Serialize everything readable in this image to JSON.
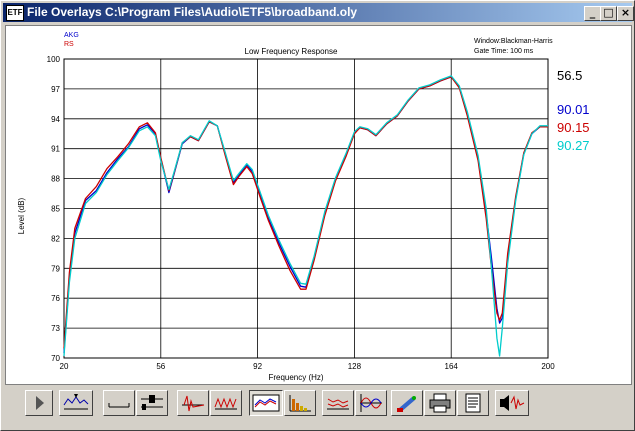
{
  "window": {
    "icon_label": "ETF",
    "title": "File Overlays  C:\\Program Files\\Audio\\ETF5\\broadband.oly",
    "buttons": {
      "minimize": "_",
      "maximize": "□",
      "close": "×"
    }
  },
  "plot": {
    "legend": [
      "AKG",
      "RS"
    ],
    "window_info": "Window:Blackman-Harris",
    "gate_info": "Gate Time: 100 ms",
    "readouts": [
      "56.5",
      "90.01",
      "90.15",
      "90.27"
    ],
    "readout_colors": [
      "#000000",
      "#0000cc",
      "#cc0000",
      "#00cccc"
    ],
    "grid": true
  },
  "chart_data": {
    "type": "line",
    "title": "Low Frequency Response",
    "xlabel": "Frequency (Hz)",
    "ylabel": "Level (dB)",
    "xlim": [
      20,
      200
    ],
    "ylim": [
      70,
      100
    ],
    "x_ticks": [
      "20",
      "56",
      "92",
      "128",
      "164",
      "200"
    ],
    "y_ticks": [
      "100",
      "97",
      "94",
      "91",
      "88",
      "85",
      "82",
      "79",
      "76",
      "73",
      "70"
    ],
    "series": [
      {
        "name": "AKG",
        "color": "#0000cc",
        "points": [
          [
            20,
            70.5
          ],
          [
            22,
            78
          ],
          [
            24,
            82.5
          ],
          [
            28,
            85.8
          ],
          [
            32,
            86.8
          ],
          [
            36,
            88.6
          ],
          [
            40,
            90
          ],
          [
            44,
            91.2
          ],
          [
            48,
            93
          ],
          [
            51,
            93.4
          ],
          [
            54,
            92.5
          ],
          [
            56,
            90
          ],
          [
            59,
            86.6
          ],
          [
            61,
            88.5
          ],
          [
            64,
            91.5
          ],
          [
            67,
            92.2
          ],
          [
            70,
            91.8
          ],
          [
            74,
            93.7
          ],
          [
            77,
            93.3
          ],
          [
            80,
            90.5
          ],
          [
            83,
            87.6
          ],
          [
            85,
            88.3
          ],
          [
            88,
            89.4
          ],
          [
            90,
            88.7
          ],
          [
            93,
            86.3
          ],
          [
            96,
            84
          ],
          [
            100,
            81.5
          ],
          [
            104,
            79.2
          ],
          [
            108,
            77.2
          ],
          [
            110,
            77.1
          ],
          [
            113,
            80
          ],
          [
            117,
            84.5
          ],
          [
            121,
            88
          ],
          [
            125,
            90.5
          ],
          [
            128,
            92.6
          ],
          [
            130,
            93.1
          ],
          [
            133,
            92.9
          ],
          [
            136,
            92.3
          ],
          [
            140,
            93.5
          ],
          [
            144,
            94.3
          ],
          [
            148,
            95.8
          ],
          [
            152,
            97
          ],
          [
            156,
            97.3
          ],
          [
            160,
            97.8
          ],
          [
            164,
            98.2
          ],
          [
            167,
            97.2
          ],
          [
            170,
            94.5
          ],
          [
            174,
            90
          ],
          [
            177,
            84.5
          ],
          [
            179,
            80
          ],
          [
            181,
            75
          ],
          [
            182,
            73.5
          ],
          [
            183,
            74
          ],
          [
            185,
            80
          ],
          [
            188,
            86
          ],
          [
            191,
            90.5
          ],
          [
            194,
            92.5
          ],
          [
            197,
            93.2
          ],
          [
            200,
            93.2
          ]
        ]
      },
      {
        "name": "RS",
        "color": "#cc0000",
        "points": [
          [
            20,
            71
          ],
          [
            22,
            78.6
          ],
          [
            24,
            83
          ],
          [
            28,
            86
          ],
          [
            32,
            87.2
          ],
          [
            36,
            89
          ],
          [
            40,
            90.2
          ],
          [
            44,
            91.5
          ],
          [
            48,
            93.2
          ],
          [
            51,
            93.6
          ],
          [
            54,
            92.6
          ],
          [
            56,
            90.1
          ],
          [
            59,
            86.8
          ],
          [
            61,
            88.6
          ],
          [
            64,
            91.6
          ],
          [
            67,
            92.2
          ],
          [
            70,
            91.8
          ],
          [
            74,
            93.7
          ],
          [
            77,
            93.3
          ],
          [
            80,
            90.3
          ],
          [
            83,
            87.4
          ],
          [
            85,
            88.2
          ],
          [
            88,
            89.2
          ],
          [
            90,
            88.5
          ],
          [
            93,
            86.1
          ],
          [
            96,
            83.8
          ],
          [
            100,
            81.2
          ],
          [
            104,
            78.8
          ],
          [
            108,
            76.9
          ],
          [
            110,
            76.9
          ],
          [
            113,
            79.8
          ],
          [
            117,
            84.3
          ],
          [
            121,
            87.8
          ],
          [
            125,
            90.3
          ],
          [
            128,
            92.5
          ],
          [
            130,
            93.1
          ],
          [
            133,
            92.9
          ],
          [
            136,
            92.3
          ],
          [
            140,
            93.5
          ],
          [
            144,
            94.3
          ],
          [
            148,
            95.8
          ],
          [
            152,
            97
          ],
          [
            156,
            97.3
          ],
          [
            160,
            97.8
          ],
          [
            164,
            98.2
          ],
          [
            167,
            97.1
          ],
          [
            170,
            94.3
          ],
          [
            174,
            89.8
          ],
          [
            177,
            84
          ],
          [
            179,
            79
          ],
          [
            181,
            74.5
          ],
          [
            182,
            73.8
          ],
          [
            183,
            74.5
          ],
          [
            185,
            80.5
          ],
          [
            188,
            86.2
          ],
          [
            191,
            90.6
          ],
          [
            194,
            92.6
          ],
          [
            197,
            93.2
          ],
          [
            200,
            93.2
          ]
        ]
      },
      {
        "name": "",
        "color": "#00cccc",
        "points": [
          [
            20,
            70.2
          ],
          [
            22,
            77.6
          ],
          [
            24,
            82
          ],
          [
            28,
            85.5
          ],
          [
            32,
            86.6
          ],
          [
            36,
            88.4
          ],
          [
            40,
            89.8
          ],
          [
            44,
            91.1
          ],
          [
            48,
            92.8
          ],
          [
            51,
            93.2
          ],
          [
            54,
            92.3
          ],
          [
            56,
            89.8
          ],
          [
            59,
            86.9
          ],
          [
            61,
            88.7
          ],
          [
            64,
            91.6
          ],
          [
            67,
            92.3
          ],
          [
            70,
            91.9
          ],
          [
            74,
            93.8
          ],
          [
            77,
            93.3
          ],
          [
            80,
            90.6
          ],
          [
            83,
            87.8
          ],
          [
            85,
            88.5
          ],
          [
            88,
            89.5
          ],
          [
            90,
            88.9
          ],
          [
            93,
            86.6
          ],
          [
            96,
            84.3
          ],
          [
            100,
            81.8
          ],
          [
            104,
            79.5
          ],
          [
            108,
            77.5
          ],
          [
            110,
            77.4
          ],
          [
            113,
            80.2
          ],
          [
            117,
            84.7
          ],
          [
            121,
            88.1
          ],
          [
            125,
            90.6
          ],
          [
            128,
            92.7
          ],
          [
            130,
            93.2
          ],
          [
            133,
            93
          ],
          [
            136,
            92.4
          ],
          [
            140,
            93.6
          ],
          [
            144,
            94.4
          ],
          [
            148,
            95.9
          ],
          [
            152,
            97.1
          ],
          [
            156,
            97.4
          ],
          [
            160,
            97.9
          ],
          [
            164,
            98.3
          ],
          [
            167,
            97.3
          ],
          [
            170,
            94.7
          ],
          [
            174,
            90.3
          ],
          [
            177,
            85
          ],
          [
            179,
            79
          ],
          [
            181,
            72
          ],
          [
            182,
            70.2
          ],
          [
            183,
            73
          ],
          [
            185,
            79.5
          ],
          [
            188,
            85.8
          ],
          [
            191,
            90.4
          ],
          [
            194,
            92.5
          ],
          [
            197,
            93.3
          ],
          [
            200,
            93.3
          ]
        ]
      }
    ]
  },
  "toolbar": {
    "buttons": [
      "play-button",
      "waterfall-button",
      "line-tool-button",
      "slider-tool-button",
      "impulse-button",
      "step-response-button",
      "overlay-view-button",
      "spectrum-button",
      "rt60-button",
      "phase-button",
      "color-button",
      "print-button",
      "notes-button",
      "export-button"
    ]
  }
}
